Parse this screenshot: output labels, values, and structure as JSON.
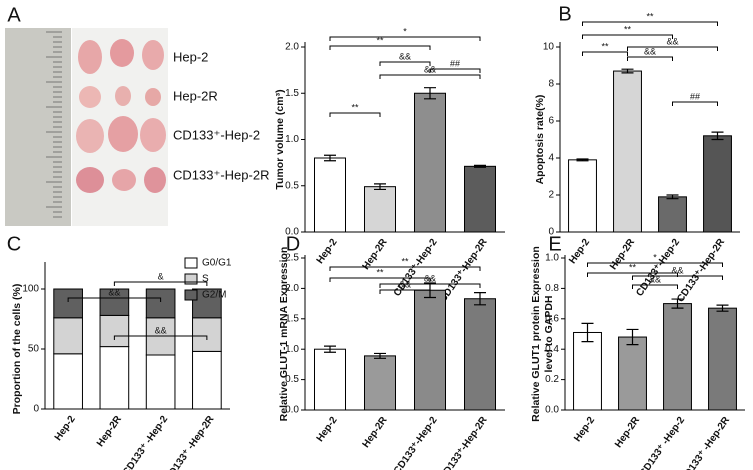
{
  "photo_labels": [
    "Hep-2",
    "Hep-2R",
    "CD133⁺-Hep-2",
    "CD133⁺-Hep-2R"
  ],
  "chart_data": [
    {
      "type": "bar",
      "panel": "A",
      "y_label": [
        "Tumor volume (cm³)"
      ],
      "categories": [
        "Hep-2",
        "Hep-2R",
        "CD133⁺-Hep-2",
        "CD133⁺-Hep-2R"
      ],
      "values": [
        0.8,
        0.49,
        1.5,
        0.71
      ],
      "errors": [
        0.03,
        0.03,
        0.06,
        0.01
      ],
      "colors": [
        "#ffffff",
        "#d6d6d6",
        "#8e8e8e",
        "#5c5c5c"
      ],
      "ylim": [
        0,
        2.0
      ],
      "yticks": [
        {
          "value": 0,
          "label": "0.0"
        },
        {
          "value": 0.5,
          "label": "0.5"
        },
        {
          "value": 1.0,
          "label": "1.0"
        },
        {
          "value": 1.5,
          "label": "1.5"
        },
        {
          "value": 2.0,
          "label": "2.0"
        }
      ],
      "annotations": [
        "*",
        "**",
        "&&",
        "&&",
        "##",
        "**"
      ]
    },
    {
      "type": "bar",
      "panel": "B",
      "y_label": [
        "Apoptosis rate(%)"
      ],
      "categories": [
        "Hep-2",
        "Hep-2R",
        "CD133⁺-Hep-2",
        "CD133⁺-Hep-2R"
      ],
      "values": [
        3.9,
        8.7,
        1.9,
        5.2
      ],
      "errors": [
        0.05,
        0.1,
        0.1,
        0.2
      ],
      "colors": [
        "#ffffff",
        "#d6d6d6",
        "#6a6a6a",
        "#555555"
      ],
      "ylim": [
        0,
        10
      ],
      "yticks": [
        0,
        2,
        4,
        6,
        8,
        10
      ],
      "annotations": [
        "**",
        "**",
        "**",
        "&&",
        "&&",
        "##"
      ]
    },
    {
      "type": "stacked",
      "panel": "C",
      "y_label": [
        "Proportion of the cells (%)"
      ],
      "categories": [
        "Hep-2",
        "Hep-2R",
        "CD133⁺ -Hep-2",
        "CD133⁺ -Hep-2R"
      ],
      "series": [
        {
          "name": "G0/G1",
          "color": "#ffffff",
          "values": [
            46,
            52,
            45,
            48
          ]
        },
        {
          "name": "S",
          "color": "#d3d3d3",
          "values": [
            30,
            26,
            31,
            28
          ]
        },
        {
          "name": "G2/M",
          "color": "#606060",
          "values": [
            24,
            22,
            24,
            24
          ]
        }
      ],
      "ylim": [
        0,
        100
      ],
      "yticks": [
        0,
        50,
        100
      ],
      "annotations": [
        "&",
        "&&",
        "&&"
      ]
    },
    {
      "type": "bar",
      "panel": "D",
      "y_label": [
        "Relative GLUT-1 mRNA Expression"
      ],
      "categories": [
        "Hep-2",
        "Hep-2R",
        "CD133⁺-Hep-2",
        "CD133⁺-Hep-2R"
      ],
      "values": [
        1.0,
        0.89,
        1.97,
        1.83
      ],
      "errors": [
        0.05,
        0.04,
        0.12,
        0.1
      ],
      "colors": [
        "#ffffff",
        "#9a9a9a",
        "#8a8a8a",
        "#7a7a7a"
      ],
      "ylim": [
        0,
        2.5
      ],
      "yticks": [
        {
          "value": 0,
          "label": "0.0"
        },
        {
          "value": 0.5,
          "label": "0.5"
        },
        {
          "value": 1.0,
          "label": "1.0"
        },
        {
          "value": 1.5,
          "label": "1.5"
        },
        {
          "value": 2.0,
          "label": "2.0"
        },
        {
          "value": 2.5,
          "label": "2.5"
        }
      ],
      "annotations": [
        "**",
        "**",
        "&&",
        "&&"
      ]
    },
    {
      "type": "bar",
      "panel": "E",
      "y_label": [
        "Relative GLUT1 protein Expression",
        "level to GAPDH"
      ],
      "categories": [
        "Hep-2",
        "Hep-2R",
        "CD133⁺ -Hep-2",
        "CD133⁺ -Hep-2R"
      ],
      "values": [
        0.51,
        0.48,
        0.7,
        0.67
      ],
      "errors": [
        0.06,
        0.05,
        0.03,
        0.02
      ],
      "colors": [
        "#ffffff",
        "#9a9a9a",
        "#8a8a8a",
        "#7a7a7a"
      ],
      "ylim": [
        0,
        1.0
      ],
      "yticks": [
        {
          "value": 0,
          "label": "0.0"
        },
        {
          "value": 0.2,
          "label": "0.2"
        },
        {
          "value": 0.4,
          "label": "0.4"
        },
        {
          "value": 0.6,
          "label": "0.6"
        },
        {
          "value": 0.8,
          "label": "0.8"
        },
        {
          "value": 1.0,
          "label": "1.0"
        }
      ],
      "annotations": [
        "*",
        "**",
        "&&",
        "&&"
      ]
    }
  ]
}
